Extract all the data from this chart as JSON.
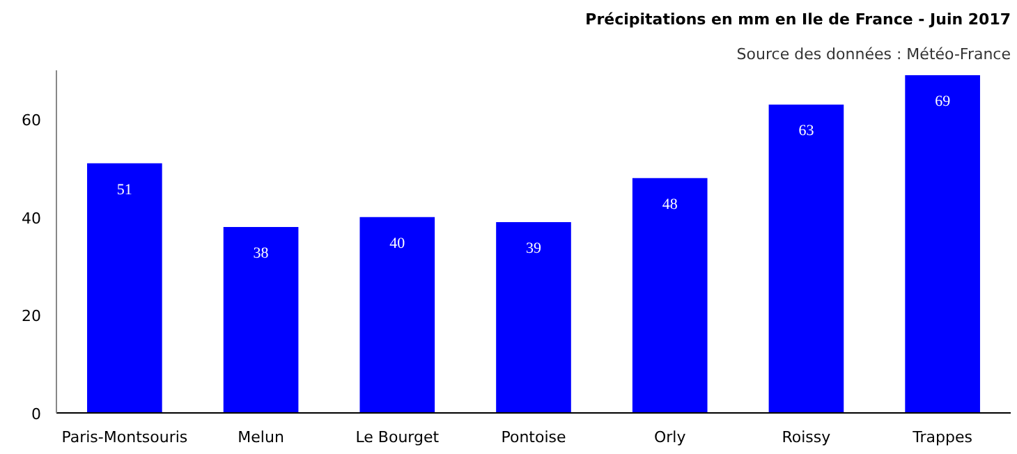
{
  "chart_data": {
    "type": "bar",
    "title": "Précipitations en mm en Ile de France - Juin 2017",
    "subtitle": "Source des données : Météo-France",
    "categories": [
      "Paris-Montsouris",
      "Melun",
      "Le Bourget",
      "Pontoise",
      "Orly",
      "Roissy",
      "Trappes"
    ],
    "values": [
      51,
      38,
      40,
      39,
      48,
      63,
      69
    ],
    "color": "#0000ff",
    "ylim": [
      0,
      70
    ],
    "yticks": [
      0,
      20,
      40,
      60
    ],
    "grid": false,
    "data_labels": true
  }
}
